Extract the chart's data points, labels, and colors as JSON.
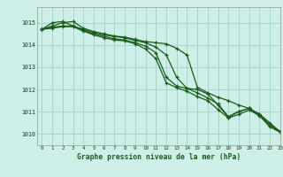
{
  "title": "Graphe pression niveau de la mer (hPa)",
  "bg_color": "#ceeee8",
  "grid_color": "#aad4cc",
  "line_color": "#1a5c1a",
  "xlim": [
    -0.5,
    23
  ],
  "ylim": [
    1009.5,
    1015.7
  ],
  "yticks": [
    1010,
    1011,
    1012,
    1013,
    1014,
    1015
  ],
  "xticks": [
    0,
    1,
    2,
    3,
    4,
    5,
    6,
    7,
    8,
    9,
    10,
    11,
    12,
    13,
    14,
    15,
    16,
    17,
    18,
    19,
    20,
    21,
    22,
    23
  ],
  "series": [
    [
      1014.7,
      1014.85,
      1015.0,
      1015.05,
      1014.75,
      1014.6,
      1014.5,
      1014.4,
      1014.35,
      1014.25,
      1014.15,
      1014.1,
      1014.05,
      1013.85,
      1013.55,
      1012.1,
      1011.85,
      1011.65,
      1011.5,
      1011.3,
      1011.15,
      1010.9,
      1010.5,
      1010.1
    ],
    [
      1014.7,
      1015.0,
      1015.05,
      1014.85,
      1014.7,
      1014.55,
      1014.45,
      1014.38,
      1014.32,
      1014.2,
      1014.1,
      1013.9,
      1013.55,
      1012.55,
      1012.05,
      1012.0,
      1011.8,
      1011.3,
      1010.75,
      1011.0,
      1011.15,
      1010.85,
      1010.4,
      1010.1
    ],
    [
      1014.7,
      1014.8,
      1014.85,
      1014.85,
      1014.65,
      1014.5,
      1014.38,
      1014.28,
      1014.22,
      1014.1,
      1013.95,
      1013.65,
      1012.55,
      1012.15,
      1012.05,
      1011.85,
      1011.62,
      1011.35,
      1010.78,
      1011.02,
      1011.15,
      1010.88,
      1010.42,
      1010.12
    ],
    [
      1014.7,
      1014.75,
      1014.82,
      1014.82,
      1014.62,
      1014.45,
      1014.32,
      1014.22,
      1014.18,
      1014.05,
      1013.82,
      1013.38,
      1012.3,
      1012.08,
      1011.92,
      1011.68,
      1011.5,
      1011.1,
      1010.72,
      1010.88,
      1011.08,
      1010.82,
      1010.32,
      1010.08
    ]
  ]
}
